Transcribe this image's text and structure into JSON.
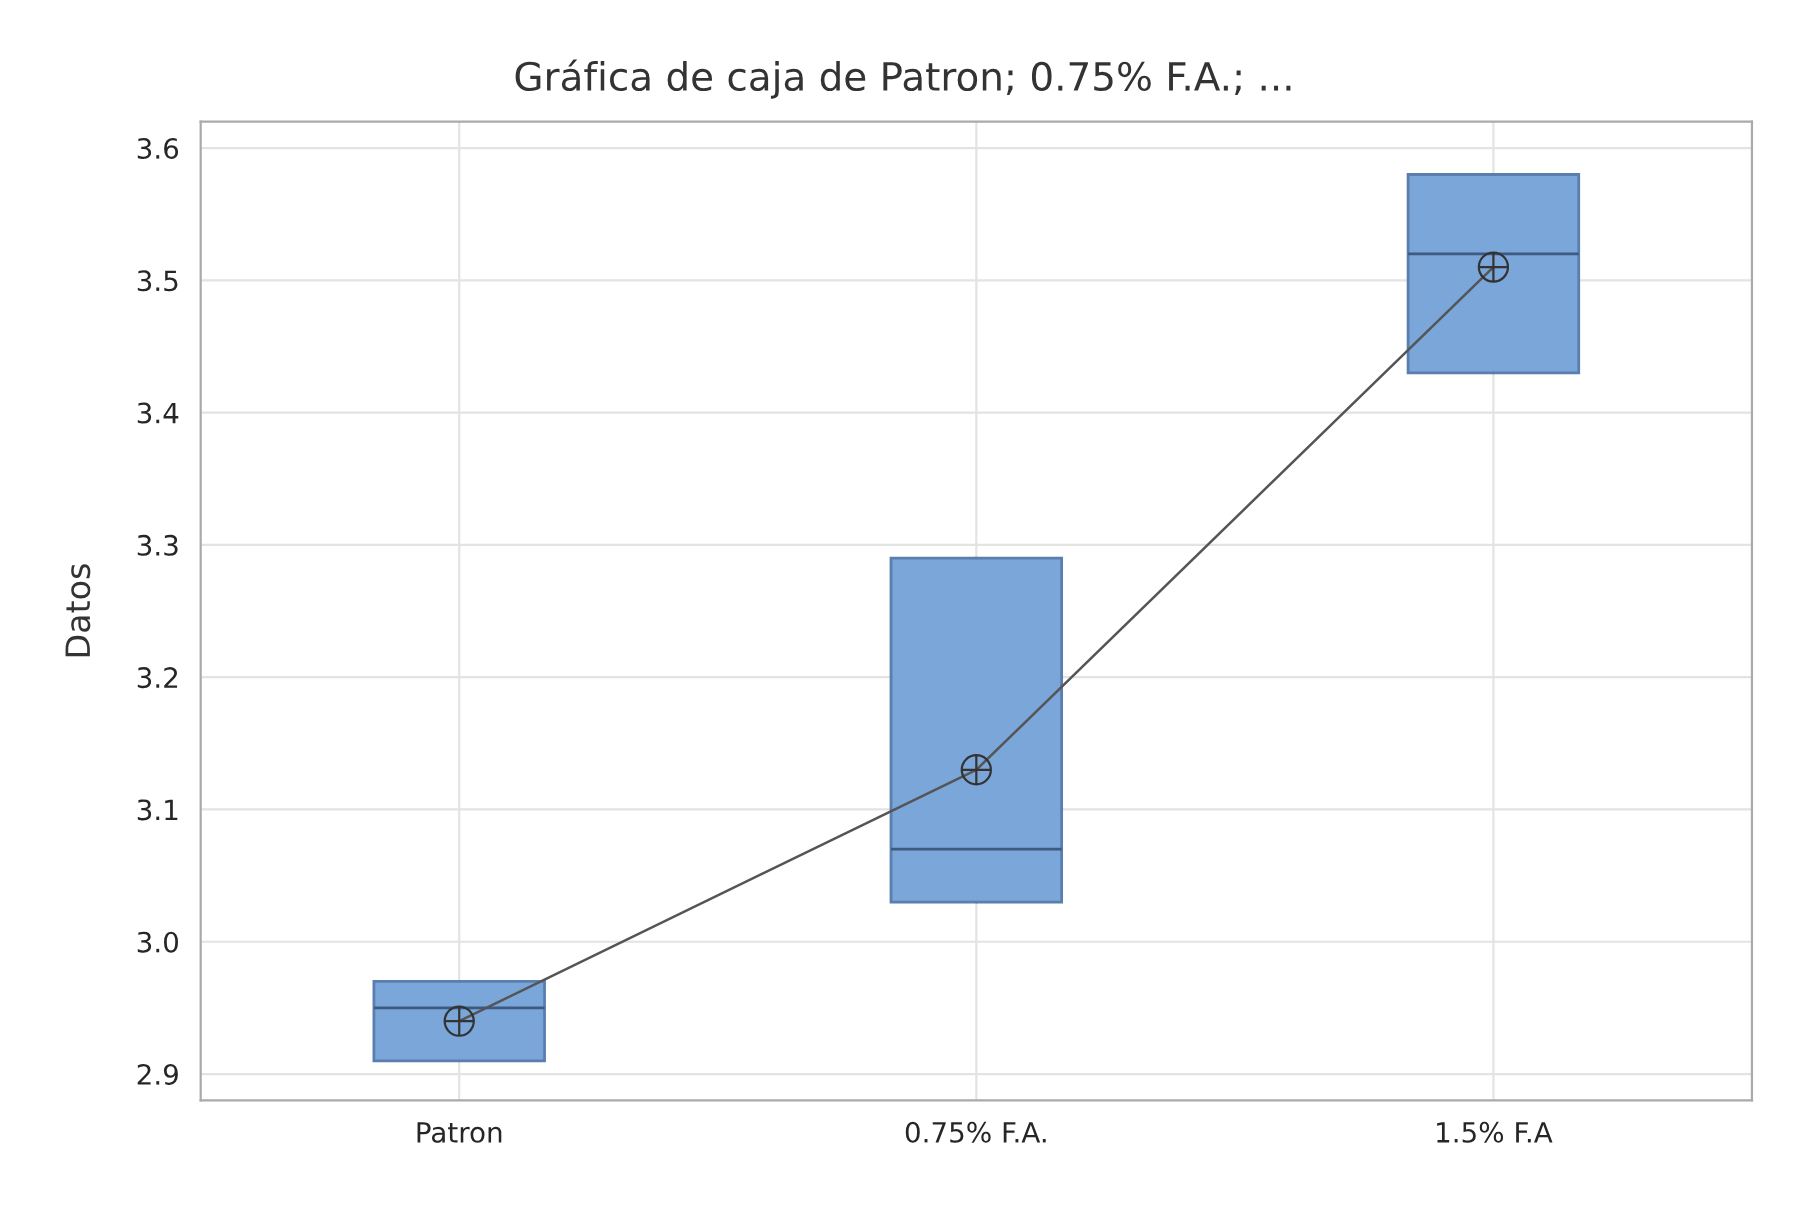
{
  "chart_data": {
    "type": "box",
    "title": "Gráfica de caja de Patron; 0.75% F.A.; ...",
    "ylabel": "Datos",
    "categories": [
      "Patron",
      "0.75% F.A.",
      "1.5% F.A"
    ],
    "boxes": [
      {
        "low": 2.91,
        "q1": 2.91,
        "median": 2.95,
        "q3": 2.97,
        "high": 2.97,
        "mean": 2.94
      },
      {
        "low": 3.03,
        "q1": 3.03,
        "median": 3.07,
        "q3": 3.29,
        "high": 3.29,
        "mean": 3.13
      },
      {
        "low": 3.43,
        "q1": 3.43,
        "median": 3.52,
        "q3": 3.58,
        "high": 3.58,
        "mean": 3.51
      }
    ],
    "color": "#7aa6da",
    "series": [
      {
        "type": "line",
        "color": "#555555",
        "values": [
          2.94,
          3.13,
          3.51
        ]
      }
    ],
    "ylim": [
      2.88,
      3.62
    ],
    "yticks": [
      {
        "value": 2.9,
        "label": "2.9"
      },
      {
        "value": 3.0,
        "label": "3.0"
      },
      {
        "value": 3.1,
        "label": "3.1"
      },
      {
        "value": 3.2,
        "label": "3.2"
      },
      {
        "value": 3.3,
        "label": "3.3"
      },
      {
        "value": 3.4,
        "label": "3.4"
      },
      {
        "value": 3.5,
        "label": "3.5"
      },
      {
        "value": 3.6,
        "label": "3.6"
      }
    ],
    "grid": true
  }
}
